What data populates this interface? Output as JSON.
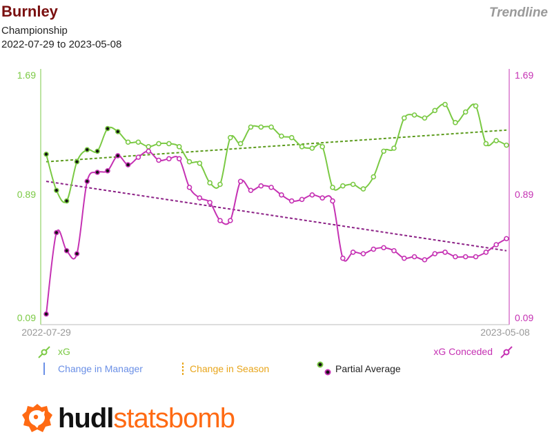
{
  "header": {
    "team": "Burnley",
    "competition": "Championship",
    "date_range": "2022-07-29 to 2023-05-08",
    "brand_tag": "Trendline"
  },
  "legend": {
    "xg": "xG",
    "xg_conceded": "xG Conceded",
    "change_manager": "Change in Manager",
    "change_season": "Change in Season",
    "partial_average": "Partial Average"
  },
  "logo": {
    "part1": "hudl",
    "part2": "statsbomb"
  },
  "colors": {
    "xg": "#7ac943",
    "xg_conceded": "#c531b3",
    "xg_trend": "#5a9a1a",
    "xgc_trend": "#8b1f85",
    "manager": "#6a8fe6",
    "season": "#e8a51a",
    "left_axis": "#7ac943",
    "right_axis": "#c531b3"
  },
  "chart_data": {
    "type": "line",
    "title": "",
    "xlabel": "",
    "ylabel": "",
    "x_tick_labels": [
      "2022-07-29",
      "2023-05-08"
    ],
    "ylim": [
      0.09,
      1.69
    ],
    "y_ticks": [
      "0.09",
      "0.89",
      "1.69"
    ],
    "y2_ticks": [
      "0.09",
      "0.89",
      "1.69"
    ],
    "grid": false,
    "series": [
      {
        "name": "xG",
        "values": [
          1.17,
          0.93,
          0.86,
          1.12,
          1.2,
          1.19,
          1.34,
          1.32,
          1.25,
          1.25,
          1.22,
          1.24,
          1.24,
          1.22,
          1.12,
          1.11,
          0.98,
          0.97,
          1.28,
          1.24,
          1.35,
          1.35,
          1.35,
          1.29,
          1.28,
          1.22,
          1.21,
          1.22,
          0.95,
          0.96,
          0.97,
          0.94,
          1.02,
          1.19,
          1.21,
          1.41,
          1.43,
          1.41,
          1.46,
          1.5,
          1.38,
          1.45,
          1.49,
          1.24,
          1.26,
          1.23
        ],
        "partial_average": [
          true,
          true,
          true,
          true,
          true,
          true,
          true,
          true,
          false,
          false,
          false,
          false,
          false,
          false,
          false,
          false,
          false,
          false,
          false,
          false,
          false,
          false,
          false,
          false,
          false,
          false,
          false,
          false,
          false,
          false,
          false,
          false,
          false,
          false,
          false,
          false,
          false,
          false,
          false,
          false,
          false,
          false,
          false,
          false,
          false,
          false
        ],
        "trendline": [
          1.12,
          1.33
        ]
      },
      {
        "name": "xG Conceded",
        "values": [
          0.11,
          0.65,
          0.53,
          0.51,
          0.99,
          1.05,
          1.06,
          1.16,
          1.1,
          1.15,
          1.19,
          1.13,
          1.14,
          1.14,
          0.95,
          0.88,
          0.85,
          0.73,
          0.73,
          0.99,
          0.93,
          0.96,
          0.95,
          0.9,
          0.86,
          0.87,
          0.9,
          0.88,
          0.86,
          0.48,
          0.52,
          0.51,
          0.54,
          0.55,
          0.53,
          0.48,
          0.49,
          0.47,
          0.51,
          0.52,
          0.49,
          0.49,
          0.49,
          0.52,
          0.57,
          0.61
        ],
        "partial_average": [
          true,
          true,
          true,
          true,
          true,
          true,
          true,
          true,
          true,
          false,
          false,
          false,
          false,
          false,
          false,
          false,
          false,
          false,
          false,
          false,
          false,
          false,
          false,
          false,
          false,
          false,
          false,
          false,
          false,
          false,
          false,
          false,
          false,
          false,
          false,
          false,
          false,
          false,
          false,
          false,
          false,
          false,
          false,
          false,
          false,
          false
        ],
        "trendline": [
          0.99,
          0.53
        ]
      }
    ]
  }
}
